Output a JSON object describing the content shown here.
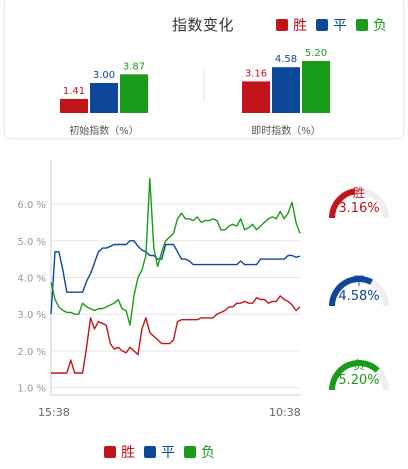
{
  "header": {
    "title": "指数变化",
    "legend": [
      {
        "label": "胜",
        "color": "#c2141b"
      },
      {
        "label": "平",
        "color": "#0d4799"
      },
      {
        "label": "负",
        "color": "#1a9b1a"
      }
    ]
  },
  "bar_groups": [
    {
      "label": "初始指数（%）",
      "values": [
        1.41,
        3.0,
        3.87
      ],
      "value_labels": [
        "1.41",
        "3.00",
        "3.87"
      ]
    },
    {
      "label": "即时指数（%）",
      "values": [
        3.16,
        4.58,
        5.2
      ],
      "value_labels": [
        "3.16",
        "4.58",
        "5.20"
      ]
    }
  ],
  "gauges": [
    {
      "name": "胜",
      "value_label": "3.16%",
      "value": 3.16,
      "color": "#c2141b"
    },
    {
      "name": "平",
      "value_label": "4.58%",
      "value": 4.58,
      "color": "#0d4799"
    },
    {
      "name": "负",
      "value_label": "5.20%",
      "value": 5.2,
      "color": "#1a9b1a"
    }
  ],
  "chart_data": [
    {
      "type": "bar",
      "categories": [
        "初始指数（%）",
        "即时指数（%）"
      ],
      "series": [
        {
          "name": "胜",
          "values": [
            1.41,
            3.16
          ]
        },
        {
          "name": "平",
          "values": [
            3.0,
            4.58
          ]
        },
        {
          "name": "负",
          "values": [
            3.87,
            5.2
          ]
        }
      ],
      "ylim": [
        0,
        5.2
      ],
      "grid": false,
      "legend": "top-right"
    },
    {
      "type": "line",
      "y_tick_labels": [
        "1.0 %",
        "2.0 %",
        "3.0 %",
        "4.0 %",
        "5.0 %",
        "6.0 %"
      ],
      "y_ticks": [
        1,
        2,
        3,
        4,
        5,
        6
      ],
      "ylim": [
        0.8,
        7.2
      ],
      "x_tick_labels": [
        "15:38",
        "10:38"
      ],
      "grid": true,
      "legend": "bottom",
      "series": [
        {
          "name": "胜",
          "color": "#c2141b",
          "values": [
            1.4,
            1.4,
            1.4,
            1.4,
            1.4,
            1.75,
            1.4,
            1.4,
            1.4,
            2.1,
            2.9,
            2.6,
            2.8,
            2.75,
            2.7,
            2.2,
            2.05,
            2.1,
            2.0,
            1.95,
            2.1,
            2.0,
            1.9,
            2.6,
            2.9,
            2.5,
            2.4,
            2.3,
            2.2,
            2.2,
            2.2,
            2.3,
            2.8,
            2.85,
            2.85,
            2.85,
            2.85,
            2.85,
            2.9,
            2.9,
            2.9,
            2.9,
            3.0,
            3.05,
            3.1,
            3.2,
            3.2,
            3.3,
            3.3,
            3.35,
            3.3,
            3.3,
            3.45,
            3.4,
            3.4,
            3.3,
            3.35,
            3.35,
            3.5,
            3.4,
            3.35,
            3.25,
            3.1,
            3.2
          ]
        },
        {
          "name": "平",
          "color": "#0d4799",
          "values": [
            3.0,
            4.7,
            4.7,
            4.2,
            3.6,
            3.6,
            3.6,
            3.6,
            3.6,
            3.9,
            4.1,
            4.4,
            4.7,
            4.8,
            4.8,
            4.85,
            4.9,
            4.9,
            4.9,
            4.9,
            5.0,
            5.0,
            4.85,
            4.75,
            4.7,
            4.6,
            4.6,
            4.5,
            4.5,
            4.9,
            4.9,
            4.9,
            4.7,
            4.5,
            4.5,
            4.45,
            4.35,
            4.35,
            4.35,
            4.35,
            4.35,
            4.35,
            4.35,
            4.35,
            4.35,
            4.35,
            4.35,
            4.35,
            4.45,
            4.35,
            4.35,
            4.35,
            4.35,
            4.5,
            4.5,
            4.5,
            4.5,
            4.5,
            4.5,
            4.5,
            4.6,
            4.6,
            4.55,
            4.58
          ]
        },
        {
          "name": "负",
          "color": "#1a9b1a",
          "values": [
            3.87,
            3.4,
            3.2,
            3.1,
            3.05,
            3.05,
            3.0,
            3.0,
            3.3,
            3.2,
            3.15,
            3.1,
            3.15,
            3.15,
            3.2,
            3.25,
            3.3,
            3.4,
            3.15,
            3.1,
            2.7,
            3.5,
            4.0,
            4.2,
            4.6,
            6.7,
            4.8,
            4.3,
            4.7,
            5.0,
            5.1,
            5.2,
            5.6,
            5.75,
            5.6,
            5.6,
            5.55,
            5.65,
            5.5,
            5.55,
            5.55,
            5.6,
            5.55,
            5.3,
            5.3,
            5.4,
            5.45,
            5.4,
            5.6,
            5.3,
            5.35,
            5.45,
            5.3,
            5.4,
            5.5,
            5.6,
            5.65,
            5.6,
            5.8,
            5.6,
            5.75,
            6.05,
            5.5,
            5.2
          ]
        }
      ]
    }
  ]
}
